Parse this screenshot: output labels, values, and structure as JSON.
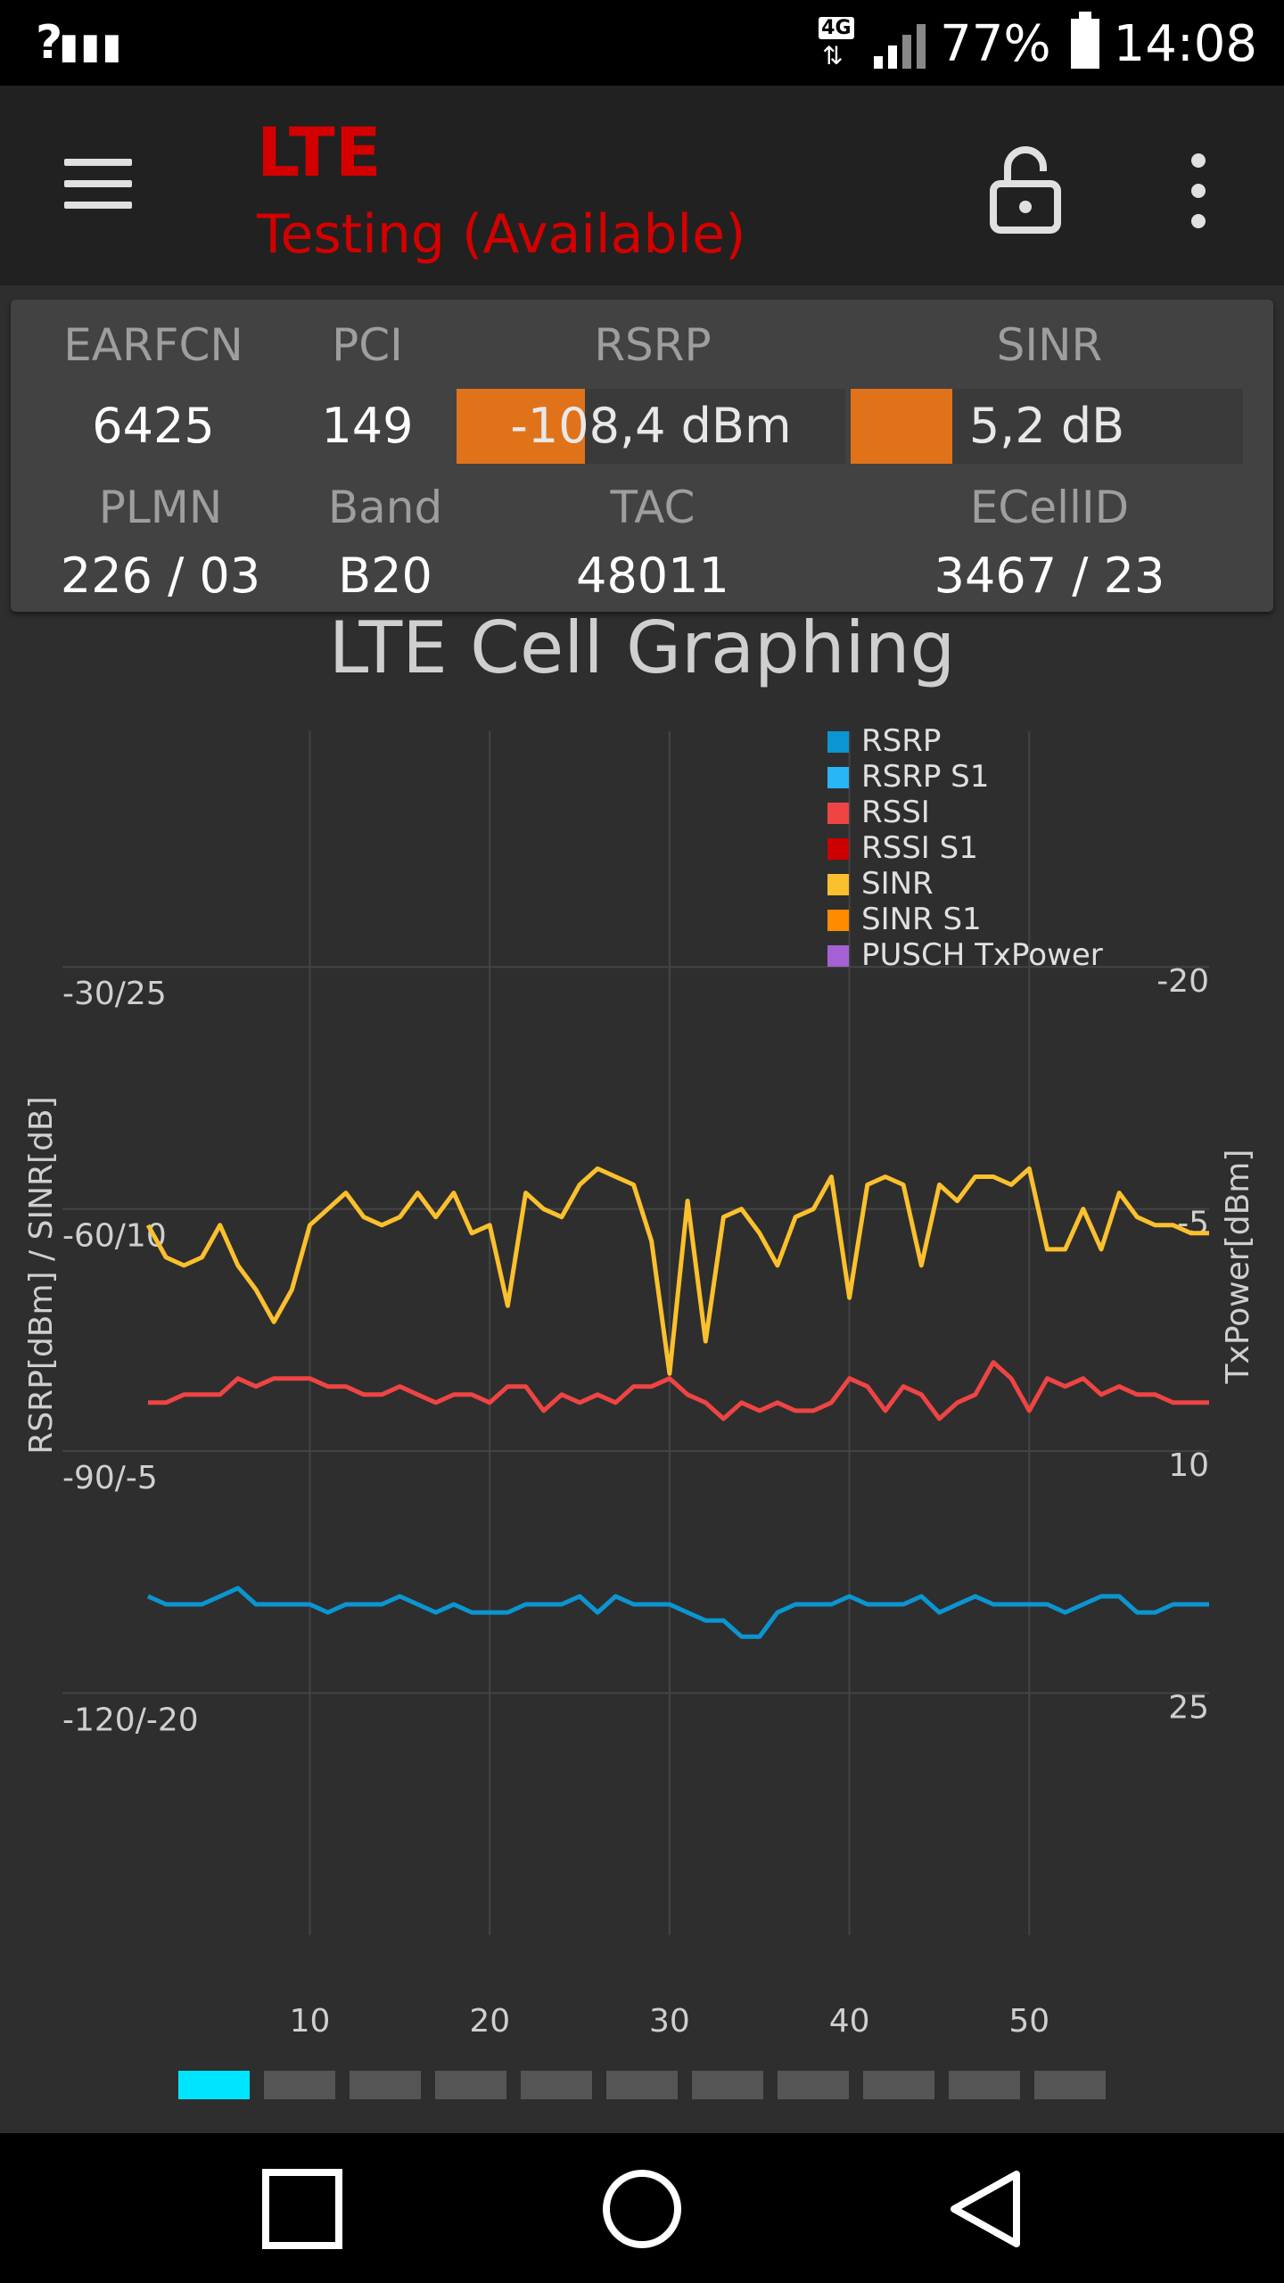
{
  "status_bar": {
    "left_glyph": "?",
    "network_type": "4G",
    "battery_text": "77%",
    "time": "14:08"
  },
  "app_bar": {
    "title": "LTE",
    "subtitle": "Testing (Available)",
    "icons": [
      "menu-icon",
      "lock-open-icon",
      "more-vert-icon"
    ]
  },
  "cell_info": {
    "labels": {
      "earfcn": "EARFCN",
      "pci": "PCI",
      "rsrp": "RSRP",
      "sinr": "SINR",
      "plmn": "PLMN",
      "band": "Band",
      "tac": "TAC",
      "ecellid": "ECellID"
    },
    "values": {
      "earfcn": "6425",
      "pci": "149",
      "rsrp": "-108,4 dBm",
      "sinr": "5,2 dB",
      "plmn": "226 / 03",
      "band": "B20",
      "tac": "48011",
      "ecellid": "3467 / 23"
    },
    "rsrp_meter_fraction": 0.33,
    "sinr_meter_fraction": 0.26,
    "meter_color": "#e0731a"
  },
  "graph": {
    "title": "LTE Cell Graphing"
  },
  "chart_data": {
    "type": "line",
    "title": "LTE Cell Graphing",
    "ylabel": "RSRP[dBm] / SINR[dB]",
    "y2label": "TxPower[dBm]",
    "x_ticks": [
      "10",
      "20",
      "30",
      "40",
      "50"
    ],
    "xlim": [
      1,
      60
    ],
    "y_ticks": [
      "-30/25",
      "-60/10",
      "-90/-5",
      "-120/-20"
    ],
    "ylim_rsrp": [
      -150,
      -0.8
    ],
    "y2_ticks": [
      "-20",
      "-5",
      "10",
      "25"
    ],
    "grid": true,
    "legend_position": "top-right",
    "legend": [
      {
        "name": "RSRP",
        "color": "#0b95d1"
      },
      {
        "name": "RSRP S1",
        "color": "#29b6f6"
      },
      {
        "name": "RSSI",
        "color": "#ef4444"
      },
      {
        "name": "RSSI S1",
        "color": "#cc0000"
      },
      {
        "name": "SINR",
        "color": "#fbc02d"
      },
      {
        "name": "SINR S1",
        "color": "#ff8c00"
      },
      {
        "name": "PUSCH TxPower",
        "color": "#a561d4"
      }
    ],
    "x": [
      1,
      2,
      3,
      4,
      5,
      6,
      7,
      8,
      9,
      10,
      11,
      12,
      13,
      14,
      15,
      16,
      17,
      18,
      19,
      20,
      21,
      22,
      23,
      24,
      25,
      26,
      27,
      28,
      29,
      30,
      31,
      32,
      33,
      34,
      35,
      36,
      37,
      38,
      39,
      40,
      41,
      42,
      43,
      44,
      45,
      46,
      47,
      48,
      49,
      50,
      51,
      52,
      53,
      54,
      55,
      56,
      57,
      58,
      59,
      60
    ],
    "series": [
      {
        "name": "RSRP",
        "color": "#0b95d1",
        "values": [
          -108,
          -109,
          -109,
          -109,
          -108,
          -107,
          -109,
          -109,
          -109,
          -109,
          -110,
          -109,
          -109,
          -109,
          -108,
          -109,
          -110,
          -109,
          -110,
          -110,
          -110,
          -109,
          -109,
          -109,
          -108,
          -110,
          -108,
          -109,
          -109,
          -109,
          -110,
          -111,
          -111,
          -113,
          -113,
          -110,
          -109,
          -109,
          -109,
          -108,
          -109,
          -109,
          -109,
          -108,
          -110,
          -109,
          -108,
          -109,
          -109,
          -109,
          -109,
          -110,
          -109,
          -108,
          -108,
          -110,
          -110,
          -109,
          -109,
          -109
        ]
      },
      {
        "name": "RSSI",
        "color": "#ef4444",
        "values": [
          -84,
          -84,
          -83,
          -83,
          -83,
          -81,
          -82,
          -81,
          -81,
          -81,
          -82,
          -82,
          -83,
          -83,
          -82,
          -83,
          -84,
          -83,
          -83,
          -84,
          -82,
          -82,
          -85,
          -83,
          -84,
          -83,
          -84,
          -82,
          -82,
          -81,
          -83,
          -84,
          -86,
          -84,
          -85,
          -84,
          -85,
          -85,
          -84,
          -81,
          -82,
          -85,
          -82,
          -83,
          -86,
          -84,
          -83,
          -79,
          -81,
          -85,
          -81,
          -82,
          -81,
          -83,
          -82,
          -83,
          -83,
          -84,
          -84,
          -84
        ]
      },
      {
        "name": "SINR",
        "color": "#fbc02d",
        "values": [
          9,
          7,
          6.5,
          7,
          9,
          6.5,
          5,
          3,
          5,
          9,
          10,
          11,
          9.5,
          9,
          9.5,
          11,
          9.5,
          11,
          8.5,
          9,
          4,
          11,
          10,
          9.5,
          11.5,
          12.5,
          12,
          11.5,
          8,
          -0.2,
          10.5,
          1.8,
          9.5,
          10,
          8.5,
          6.5,
          9.5,
          10,
          12,
          4.5,
          11.5,
          12,
          11.5,
          6.5,
          11.5,
          10.5,
          12,
          12,
          11.5,
          12.5,
          7.5,
          7.5,
          10,
          7.5,
          11,
          9.5,
          9,
          9,
          8.5,
          8.5
        ]
      }
    ]
  },
  "pager": {
    "count": 11,
    "active_index": 0
  },
  "nav_bar": {
    "buttons": [
      "recents-square-icon",
      "home-circle-icon",
      "back-triangle-icon"
    ]
  }
}
